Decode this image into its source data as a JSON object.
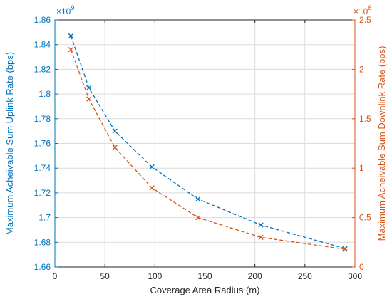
{
  "colors": {
    "left": "#0072BD",
    "right": "#D95319",
    "axis": "#262626",
    "grid": "#dcdcdc"
  },
  "chart_data": {
    "type": "line",
    "title": "",
    "xlabel": "Coverage Area Radius (m)",
    "ylabel_left": "Maximum Acheivable Sum Uplink Rate (bps)",
    "ylabel_right": "Maximum Acheivable Sum Downlink Rate (bps)",
    "exponent_left": "×10",
    "exponent_left_power": "9",
    "exponent_right": "×10",
    "exponent_right_power": "8",
    "xlim": [
      0,
      300
    ],
    "ylim_left": [
      1.66,
      1.86
    ],
    "ylim_right": [
      0,
      2.5
    ],
    "grid": true,
    "xticks": [
      "0",
      "50",
      "100",
      "150",
      "200",
      "250",
      "300"
    ],
    "yticks_left": [
      "1.66",
      "1.68",
      "1.7",
      "1.72",
      "1.74",
      "1.76",
      "1.78",
      "1.8",
      "1.82",
      "1.84",
      "1.86"
    ],
    "yticks_right": [
      "0",
      "0.5",
      "1",
      "1.5",
      "2",
      "2.5"
    ],
    "x": [
      16,
      34,
      60,
      97,
      143,
      206,
      290
    ],
    "series": [
      {
        "axis": "left",
        "marker": "x",
        "linestyle": "dashed",
        "values": [
          1.847,
          1.805,
          1.77,
          1.741,
          1.715,
          1.694,
          1.675
        ]
      },
      {
        "axis": "right",
        "marker": "x",
        "linestyle": "dashed",
        "values": [
          2.2,
          1.7,
          1.21,
          0.8,
          0.5,
          0.3,
          0.18
        ]
      }
    ]
  }
}
